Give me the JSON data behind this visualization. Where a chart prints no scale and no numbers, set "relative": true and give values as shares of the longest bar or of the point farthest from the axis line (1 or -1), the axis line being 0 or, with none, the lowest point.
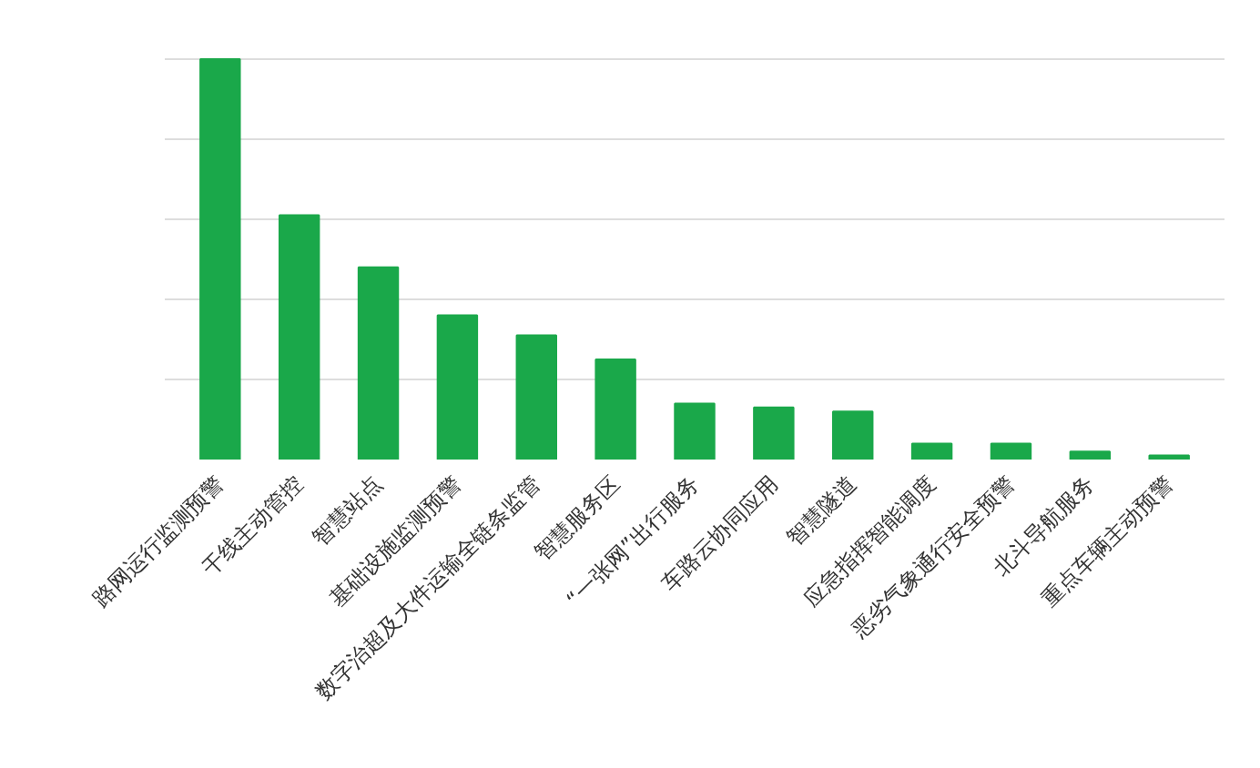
{
  "chart_data": {
    "type": "bar",
    "relative": true,
    "grid": "y",
    "color": "#1aa84a",
    "categories": [
      "路网运行监测预警",
      "干线主动管控",
      "智慧站点",
      "基础设施监测预警",
      "数字治超及大件运输全链条监管",
      "智慧服务区",
      "“一张网”出行服务",
      "车路云协同应用",
      "智慧隧道",
      "应急指挥智能调度",
      "恶劣气象通行安全预警",
      "北斗导航服务",
      "重点车辆主动预警"
    ],
    "values": [
      1,
      0.61,
      0.48,
      0.36,
      0.31,
      0.25,
      0.14,
      0.13,
      0.12,
      0.04,
      0.04,
      0.02,
      0.01
    ]
  }
}
